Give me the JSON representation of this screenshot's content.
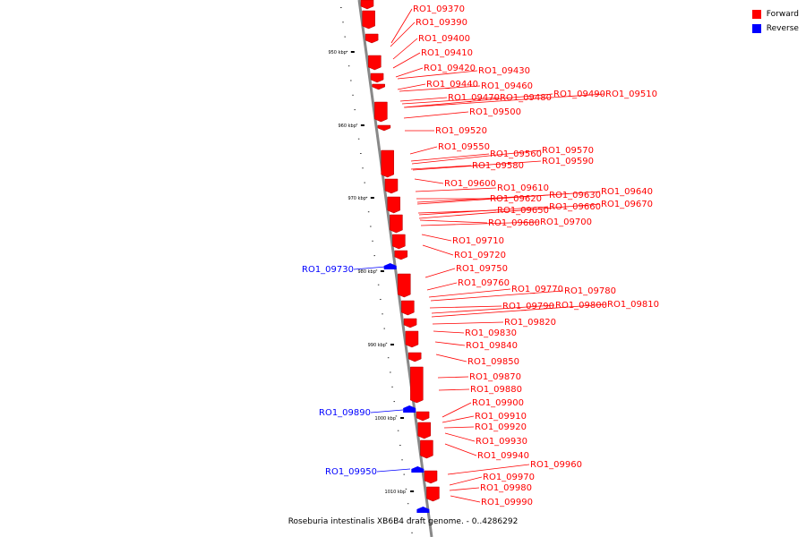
{
  "legend": {
    "forward": {
      "label": "Forward",
      "color": "#ff0000"
    },
    "reverse": {
      "label": "Reverse",
      "color": "#0000ff"
    }
  },
  "caption": "Roseburia intestinalis XB6B4 draft genome. - 0..4286292",
  "ticks": [
    "950 kbp",
    "960 kbp",
    "970 kbp",
    "980 kbp",
    "990 kbp",
    "1000 kbp",
    "1010 kbp"
  ],
  "genes": [
    {
      "id": "RO1_09370",
      "strand": "forward"
    },
    {
      "id": "RO1_09390",
      "strand": "forward"
    },
    {
      "id": "RO1_09400",
      "strand": "forward"
    },
    {
      "id": "RO1_09410",
      "strand": "forward"
    },
    {
      "id": "RO1_09420",
      "strand": "forward"
    },
    {
      "id": "RO1_09430",
      "strand": "forward"
    },
    {
      "id": "RO1_09440",
      "strand": "forward"
    },
    {
      "id": "RO1_09460",
      "strand": "forward"
    },
    {
      "id": "RO1_09470",
      "strand": "forward"
    },
    {
      "id": "RO1_09480",
      "strand": "forward"
    },
    {
      "id": "RO1_09490",
      "strand": "forward"
    },
    {
      "id": "RO1_09510",
      "strand": "forward"
    },
    {
      "id": "RO1_09500",
      "strand": "forward"
    },
    {
      "id": "RO1_09520",
      "strand": "forward"
    },
    {
      "id": "RO1_09550",
      "strand": "forward"
    },
    {
      "id": "RO1_09560",
      "strand": "forward"
    },
    {
      "id": "RO1_09570",
      "strand": "forward"
    },
    {
      "id": "RO1_09580",
      "strand": "forward"
    },
    {
      "id": "RO1_09590",
      "strand": "forward"
    },
    {
      "id": "RO1_09600",
      "strand": "forward"
    },
    {
      "id": "RO1_09610",
      "strand": "forward"
    },
    {
      "id": "RO1_09620",
      "strand": "forward"
    },
    {
      "id": "RO1_09630",
      "strand": "forward"
    },
    {
      "id": "RO1_09640",
      "strand": "forward"
    },
    {
      "id": "RO1_09650",
      "strand": "forward"
    },
    {
      "id": "RO1_09660",
      "strand": "forward"
    },
    {
      "id": "RO1_09670",
      "strand": "forward"
    },
    {
      "id": "RO1_09680",
      "strand": "forward"
    },
    {
      "id": "RO1_09700",
      "strand": "forward"
    },
    {
      "id": "RO1_09710",
      "strand": "forward"
    },
    {
      "id": "RO1_09720",
      "strand": "forward"
    },
    {
      "id": "RO1_09730",
      "strand": "reverse"
    },
    {
      "id": "RO1_09750",
      "strand": "forward"
    },
    {
      "id": "RO1_09760",
      "strand": "forward"
    },
    {
      "id": "RO1_09770",
      "strand": "forward"
    },
    {
      "id": "RO1_09780",
      "strand": "forward"
    },
    {
      "id": "RO1_09790",
      "strand": "forward"
    },
    {
      "id": "RO1_09800",
      "strand": "forward"
    },
    {
      "id": "RO1_09810",
      "strand": "forward"
    },
    {
      "id": "RO1_09820",
      "strand": "forward"
    },
    {
      "id": "RO1_09830",
      "strand": "forward"
    },
    {
      "id": "RO1_09840",
      "strand": "forward"
    },
    {
      "id": "RO1_09850",
      "strand": "forward"
    },
    {
      "id": "RO1_09870",
      "strand": "forward"
    },
    {
      "id": "RO1_09880",
      "strand": "forward"
    },
    {
      "id": "RO1_09890",
      "strand": "reverse"
    },
    {
      "id": "RO1_09900",
      "strand": "forward"
    },
    {
      "id": "RO1_09910",
      "strand": "forward"
    },
    {
      "id": "RO1_09920",
      "strand": "forward"
    },
    {
      "id": "RO1_09930",
      "strand": "forward"
    },
    {
      "id": "RO1_09940",
      "strand": "forward"
    },
    {
      "id": "RO1_09950",
      "strand": "reverse"
    },
    {
      "id": "RO1_09960",
      "strand": "forward"
    },
    {
      "id": "RO1_09970",
      "strand": "forward"
    },
    {
      "id": "RO1_09980",
      "strand": "forward"
    },
    {
      "id": "RO1_09990",
      "strand": "forward"
    }
  ]
}
